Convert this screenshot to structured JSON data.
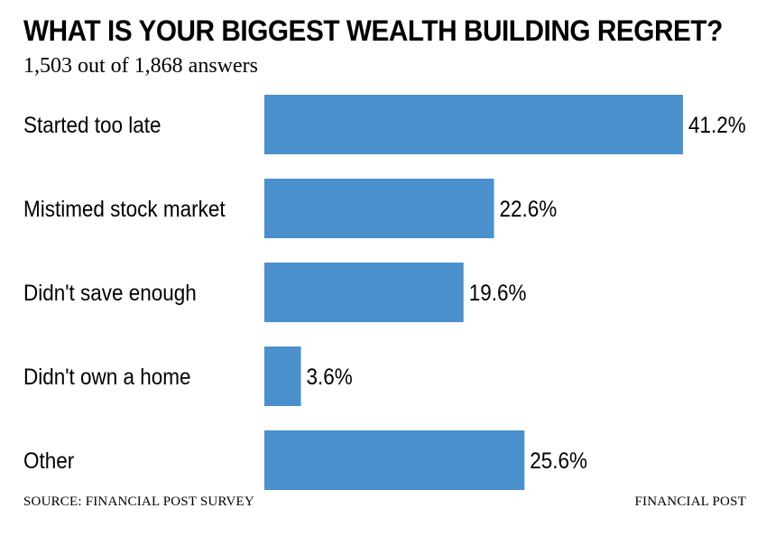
{
  "chart_data": {
    "type": "bar",
    "orientation": "horizontal",
    "title": "WHAT IS YOUR BIGGEST WEALTH BUILDING REGRET?",
    "subtitle": "1,503 out of 1,868 answers",
    "categories": [
      "Started too late",
      "Mistimed stock market",
      "Didn't save enough",
      "Didn't own a home",
      "Other"
    ],
    "values": [
      41.2,
      22.6,
      19.6,
      3.6,
      25.6
    ],
    "value_labels": [
      "41.2%",
      "22.6%",
      "19.6%",
      "3.6%",
      "25.6%"
    ],
    "bar_color": "#4a90cd",
    "xlim": [
      0,
      41.2
    ],
    "grid": false,
    "legend": "none"
  },
  "footer": {
    "source": "SOURCE: FINANCIAL POST SURVEY",
    "brand": "FINANCIAL POST"
  }
}
